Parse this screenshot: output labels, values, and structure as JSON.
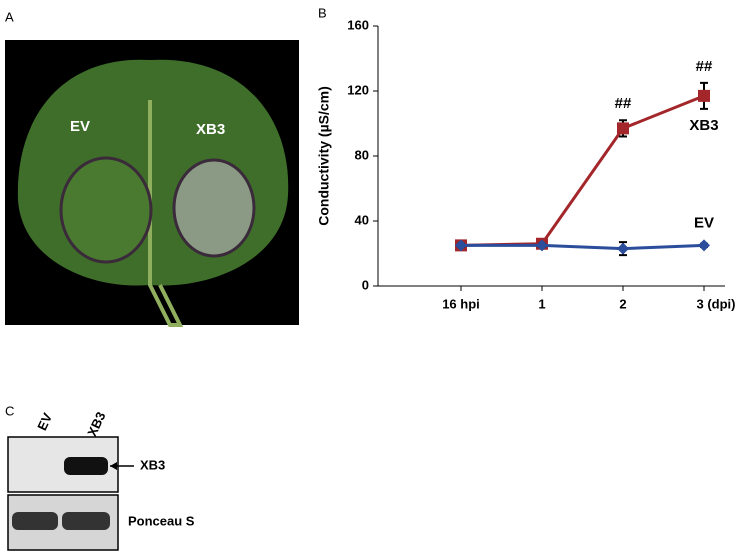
{
  "panel_labels": [
    "A",
    "B",
    "C"
  ],
  "leaf": {
    "labels": [
      "EV",
      "XB3"
    ]
  },
  "blot": {
    "lanes": [
      "EV",
      "XB3"
    ],
    "bands": [
      "XB3",
      "Ponceau S"
    ]
  },
  "chart_data": {
    "type": "line",
    "y_label": "Conductivity (µS/cm)",
    "categories": [
      "16 hpi",
      "1",
      "2",
      "3 (dpi)"
    ],
    "ylim": [
      0,
      160
    ],
    "yticks": [
      0,
      40,
      80,
      120,
      160
    ],
    "series": [
      {
        "name": "XB3",
        "color": "#a3262a",
        "values": [
          25,
          26,
          97,
          117
        ],
        "errors": [
          2,
          2,
          5,
          8
        ],
        "value_annotations": [
          null,
          null,
          "##",
          "##"
        ]
      },
      {
        "name": "EV",
        "color": "#2b4d9b",
        "values": [
          25,
          25,
          23,
          25
        ],
        "errors": [
          1,
          1,
          4,
          1
        ]
      }
    ]
  }
}
